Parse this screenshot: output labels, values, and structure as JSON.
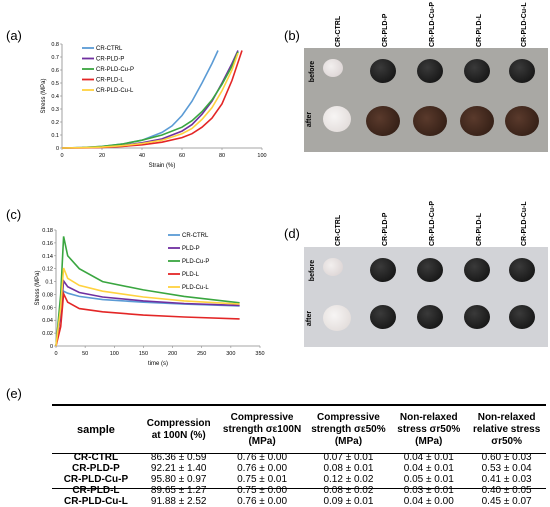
{
  "panels": {
    "a": "(a)",
    "b": "(b)",
    "c": "(c)",
    "d": "(d)",
    "e": "(e)"
  },
  "chart_data": [
    {
      "type": "line",
      "ylabel": "Stress (MPa)",
      "xlabel": "Strain (%)",
      "xlim": [
        0,
        100
      ],
      "ylim": [
        0,
        0.8
      ],
      "xticks": [
        "0",
        "20",
        "40",
        "60",
        "80",
        "100"
      ],
      "yticks": [
        "0",
        "0.1",
        "0.2",
        "0.3",
        "0.4",
        "0.5",
        "0.6",
        "0.7",
        "0.8"
      ],
      "legend_position": "top-left",
      "series": [
        {
          "name": "CR-CTRL",
          "color": "#5b9bd5",
          "x": [
            0,
            10,
            20,
            30,
            40,
            50,
            55,
            60,
            65,
            70,
            75,
            78
          ],
          "y": [
            0,
            0.003,
            0.012,
            0.03,
            0.06,
            0.12,
            0.17,
            0.25,
            0.36,
            0.5,
            0.65,
            0.75
          ]
        },
        {
          "name": "CR-PLD-P",
          "color": "#7030a0",
          "x": [
            0,
            10,
            20,
            30,
            40,
            50,
            60,
            65,
            70,
            75,
            80,
            85,
            88
          ],
          "y": [
            0,
            0.002,
            0.008,
            0.02,
            0.04,
            0.07,
            0.13,
            0.18,
            0.26,
            0.36,
            0.5,
            0.65,
            0.75
          ]
        },
        {
          "name": "CR-PLD-Cu-P",
          "color": "#3aa640",
          "x": [
            0,
            10,
            20,
            30,
            40,
            50,
            60,
            65,
            70,
            75,
            80,
            85,
            88
          ],
          "y": [
            0,
            0.003,
            0.012,
            0.03,
            0.06,
            0.1,
            0.16,
            0.21,
            0.28,
            0.37,
            0.49,
            0.63,
            0.74
          ]
        },
        {
          "name": "CR-PLD-L",
          "color": "#e32626",
          "x": [
            0,
            10,
            20,
            30,
            40,
            50,
            60,
            65,
            70,
            75,
            80,
            85,
            90
          ],
          "y": [
            0,
            0.001,
            0.004,
            0.012,
            0.025,
            0.045,
            0.08,
            0.11,
            0.16,
            0.23,
            0.34,
            0.52,
            0.75
          ]
        },
        {
          "name": "CR-PLD-Cu-L",
          "color": "#ffd23f",
          "x": [
            0,
            10,
            20,
            30,
            40,
            50,
            60,
            65,
            70,
            75,
            80,
            85,
            88
          ],
          "y": [
            0,
            0.002,
            0.007,
            0.018,
            0.035,
            0.06,
            0.11,
            0.15,
            0.22,
            0.31,
            0.44,
            0.6,
            0.73
          ]
        }
      ]
    },
    {
      "type": "line",
      "ylabel": "Stress (MPa)",
      "xlabel": "time (s)",
      "xlim": [
        0,
        350
      ],
      "ylim": [
        0,
        0.18
      ],
      "xticks": [
        "0",
        "50",
        "100",
        "150",
        "200",
        "250",
        "300",
        "350"
      ],
      "yticks": [
        "0",
        "0.02",
        "0.04",
        "0.06",
        "0.08",
        "0.1",
        "0.12",
        "0.14",
        "0.16",
        "0.18"
      ],
      "legend_position": "top-right",
      "series": [
        {
          "name": "CR-CTRL",
          "color": "#5b9bd5",
          "x": [
            0,
            8,
            13,
            20,
            40,
            80,
            150,
            220,
            315
          ],
          "y": [
            0,
            0.05,
            0.085,
            0.082,
            0.077,
            0.072,
            0.068,
            0.065,
            0.062
          ]
        },
        {
          "name": "PLD-P",
          "color": "#7030a0",
          "x": [
            0,
            8,
            13,
            20,
            40,
            80,
            150,
            220,
            315
          ],
          "y": [
            0,
            0.05,
            0.101,
            0.092,
            0.083,
            0.076,
            0.07,
            0.066,
            0.063
          ]
        },
        {
          "name": "PLD-Cu-P",
          "color": "#3aa640",
          "x": [
            0,
            8,
            13,
            20,
            40,
            80,
            150,
            220,
            315
          ],
          "y": [
            0,
            0.08,
            0.17,
            0.14,
            0.12,
            0.1,
            0.087,
            0.077,
            0.067
          ]
        },
        {
          "name": "PLD-L",
          "color": "#e32626",
          "x": [
            0,
            8,
            13,
            20,
            40,
            80,
            150,
            220,
            315
          ],
          "y": [
            0,
            0.03,
            0.081,
            0.068,
            0.058,
            0.053,
            0.048,
            0.045,
            0.042
          ]
        },
        {
          "name": "PLD-Cu-L",
          "color": "#ffd23f",
          "x": [
            0,
            8,
            13,
            20,
            40,
            80,
            150,
            220,
            315
          ],
          "y": [
            0,
            0.06,
            0.121,
            0.105,
            0.094,
            0.085,
            0.076,
            0.07,
            0.065
          ]
        }
      ]
    }
  ],
  "photos": {
    "b": {
      "columns": [
        "CR-CTRL",
        "CR-PLD-P",
        "CR-PLD-Cu-P",
        "CR-PLD-L",
        "CR-PLD-Cu-L"
      ],
      "rows": [
        "before",
        "after"
      ]
    },
    "d": {
      "columns": [
        "CR-CTRL",
        "CR-PLD-P",
        "CR-PLD-Cu-P",
        "CR-PLD-L",
        "CR-PLD-Cu-L"
      ],
      "rows": [
        "before",
        "after"
      ]
    }
  },
  "table": {
    "headers": [
      "sample",
      "Compression at 100N (%)",
      "Compressive strength σε100N (MPa)",
      "Compressive strength σε50% (MPa)",
      "Non-relaxed stress σr50% (MPa)",
      "Non-relaxed relative stress σr50%"
    ],
    "rows": [
      [
        "CR-CTRL",
        "86.36 ± 0.59",
        "0.76 ± 0.00",
        "0.07 ± 0.01",
        "0.04 ± 0.01",
        "0.60 ± 0.03"
      ],
      [
        "CR-PLD-P",
        "92.21 ± 1.40",
        "0.76 ± 0.00",
        "0.08 ± 0.01",
        "0.04 ± 0.01",
        "0.53 ± 0.04"
      ],
      [
        "CR-PLD-Cu-P",
        "95.80 ± 0.97",
        "0.75 ± 0.01",
        "0.12 ± 0.02",
        "0.05 ± 0.01",
        "0.41 ± 0.03"
      ],
      [
        "CR-PLD-L",
        "89.65 ± 1.27",
        "0.75 ± 0.00",
        "0.08 ± 0.02",
        "0.03 ± 0.01",
        "0.40 ± 0.05"
      ],
      [
        "CR-PLD-Cu-L",
        "91.88 ± 2.52",
        "0.76 ± 0.00",
        "0.09 ± 0.01",
        "0.04 ± 0.00",
        "0.45 ± 0.07"
      ]
    ]
  }
}
